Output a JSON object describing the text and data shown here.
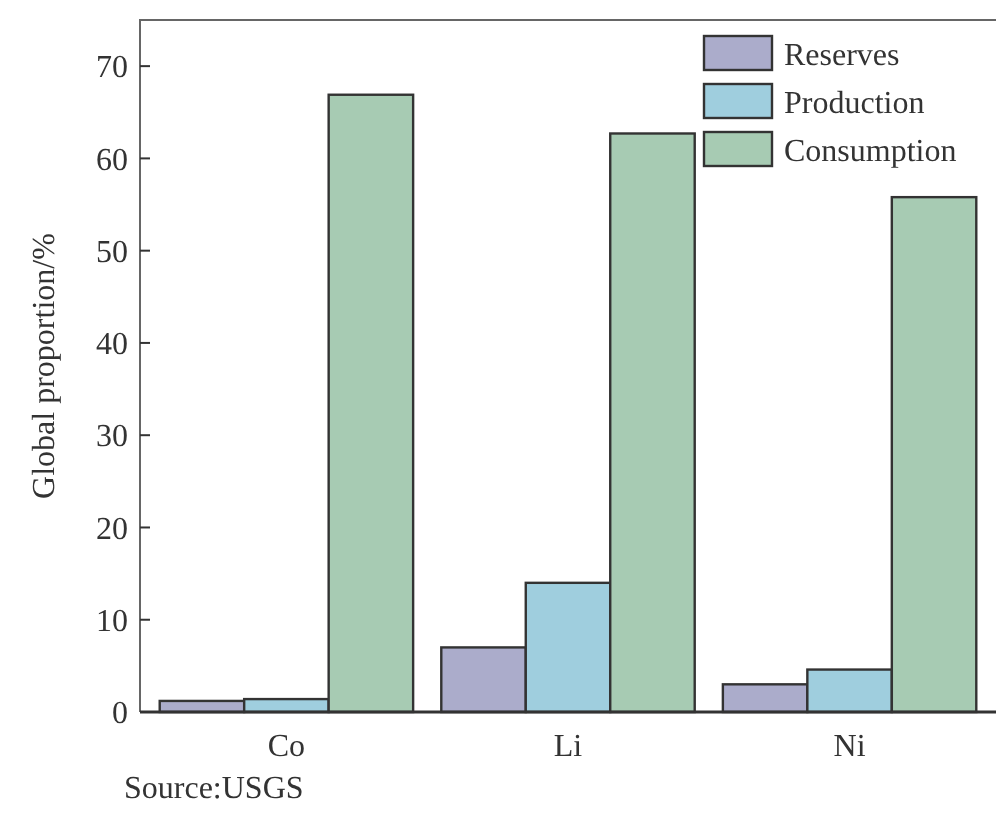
{
  "chart_data": {
    "type": "bar",
    "categories": [
      "Co",
      "Li",
      "Ni"
    ],
    "series": [
      {
        "name": "Reserves",
        "color": "#abaccb",
        "values": [
          1.2,
          7.0,
          3.0
        ]
      },
      {
        "name": "Production",
        "color": "#9fcede",
        "values": [
          1.4,
          14.0,
          4.6
        ]
      },
      {
        "name": "Consumption",
        "color": "#a7cbb3",
        "values": [
          66.9,
          62.7,
          55.8
        ]
      }
    ],
    "ylabel": "Global proportion/%",
    "ylim": [
      0,
      75
    ],
    "yticks": [
      0,
      10,
      20,
      30,
      40,
      50,
      60,
      70
    ],
    "legend": "top right",
    "grid": false,
    "annotations": [
      "Source:USGS"
    ]
  }
}
